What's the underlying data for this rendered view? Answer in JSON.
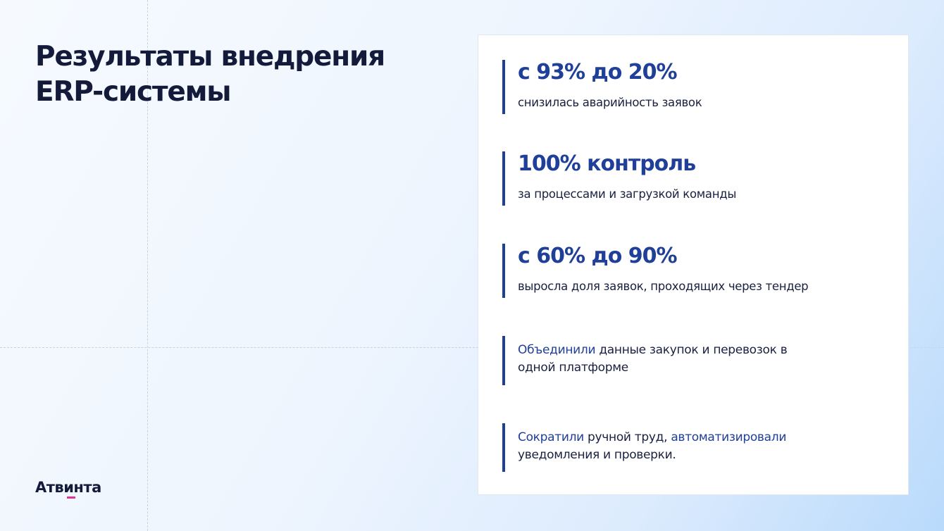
{
  "title": "Результаты внедрения ERP-системы",
  "logo": "Атвинта",
  "colors": {
    "accent": "#1f3f99",
    "text": "#1a2040",
    "logo_underline": "#e0329b"
  },
  "results": [
    {
      "headline": "с 93% до 20%",
      "caption": "снизилась аварийность заявок"
    },
    {
      "headline": "100% контроль",
      "caption": "за процессами и загрузкой команды"
    },
    {
      "headline": "с 60% до 90%",
      "caption": "выросла доля заявок, проходящих через тендер"
    }
  ],
  "notes": [
    {
      "hl1": "Объединили",
      "t1": " данные закупок и перевозок в одной платформе"
    },
    {
      "hl1": "Сократили",
      "t1": " ручной труд, ",
      "hl2": "автоматизировали",
      "t2": " уведомления и проверки."
    }
  ]
}
